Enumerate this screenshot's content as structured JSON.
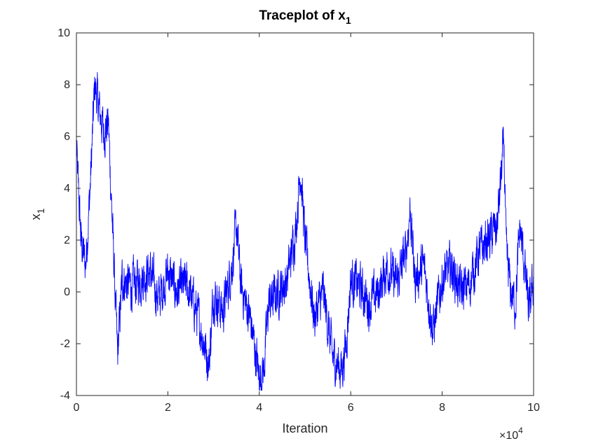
{
  "chart_data": {
    "type": "line",
    "title": "Traceplot of x",
    "title_subscript": "1",
    "xlabel": "Iteration",
    "ylabel": "x",
    "ylabel_subscript": "1",
    "x_exponent_label": "×10",
    "x_exponent_power": "4",
    "xlim": [
      0,
      10
    ],
    "ylim": [
      -4,
      10
    ],
    "xticks": [
      0,
      2,
      4,
      6,
      8,
      10
    ],
    "yticks": [
      -4,
      -2,
      0,
      2,
      4,
      6,
      8,
      10
    ],
    "grid": false,
    "legend": "none",
    "series": [
      {
        "color": "#0000ff",
        "x": [
          0,
          0.1,
          0.2,
          0.3,
          0.4,
          0.5,
          0.6,
          0.7,
          0.8,
          0.9,
          1.0,
          1.2,
          1.4,
          1.6,
          1.8,
          2.0,
          2.2,
          2.4,
          2.6,
          2.8,
          2.9,
          3.0,
          3.2,
          3.4,
          3.5,
          3.6,
          3.8,
          4.0,
          4.1,
          4.2,
          4.4,
          4.6,
          4.8,
          4.9,
          5.0,
          5.2,
          5.4,
          5.6,
          5.8,
          5.9,
          6.0,
          6.2,
          6.4,
          6.6,
          6.8,
          7.0,
          7.2,
          7.3,
          7.4,
          7.6,
          7.8,
          8.0,
          8.2,
          8.4,
          8.6,
          8.8,
          9.0,
          9.2,
          9.35,
          9.4,
          9.5,
          9.6,
          9.7,
          9.8,
          9.9,
          10.0
        ],
        "y": [
          5.5,
          2.0,
          1.0,
          4.0,
          8.0,
          7.0,
          6.2,
          6.5,
          2.0,
          -2.5,
          0.5,
          0.2,
          0.5,
          0.8,
          -0.3,
          0.8,
          0.0,
          0.3,
          -0.6,
          -2.0,
          -2.8,
          0.0,
          -0.8,
          1.0,
          2.5,
          0.2,
          -1.0,
          -3.3,
          -3.0,
          -0.5,
          0.0,
          0.4,
          2.5,
          4.8,
          2.0,
          -1.0,
          0.0,
          -2.5,
          -3.0,
          -2.0,
          0.5,
          0.2,
          -0.5,
          0.0,
          1.0,
          0.3,
          1.5,
          3.2,
          0.5,
          1.0,
          -1.5,
          0.5,
          1.0,
          0.0,
          0.3,
          1.5,
          2.0,
          2.5,
          5.8,
          1.5,
          0.0,
          -0.5,
          2.5,
          1.0,
          -0.8,
          0.5
        ]
      }
    ]
  }
}
